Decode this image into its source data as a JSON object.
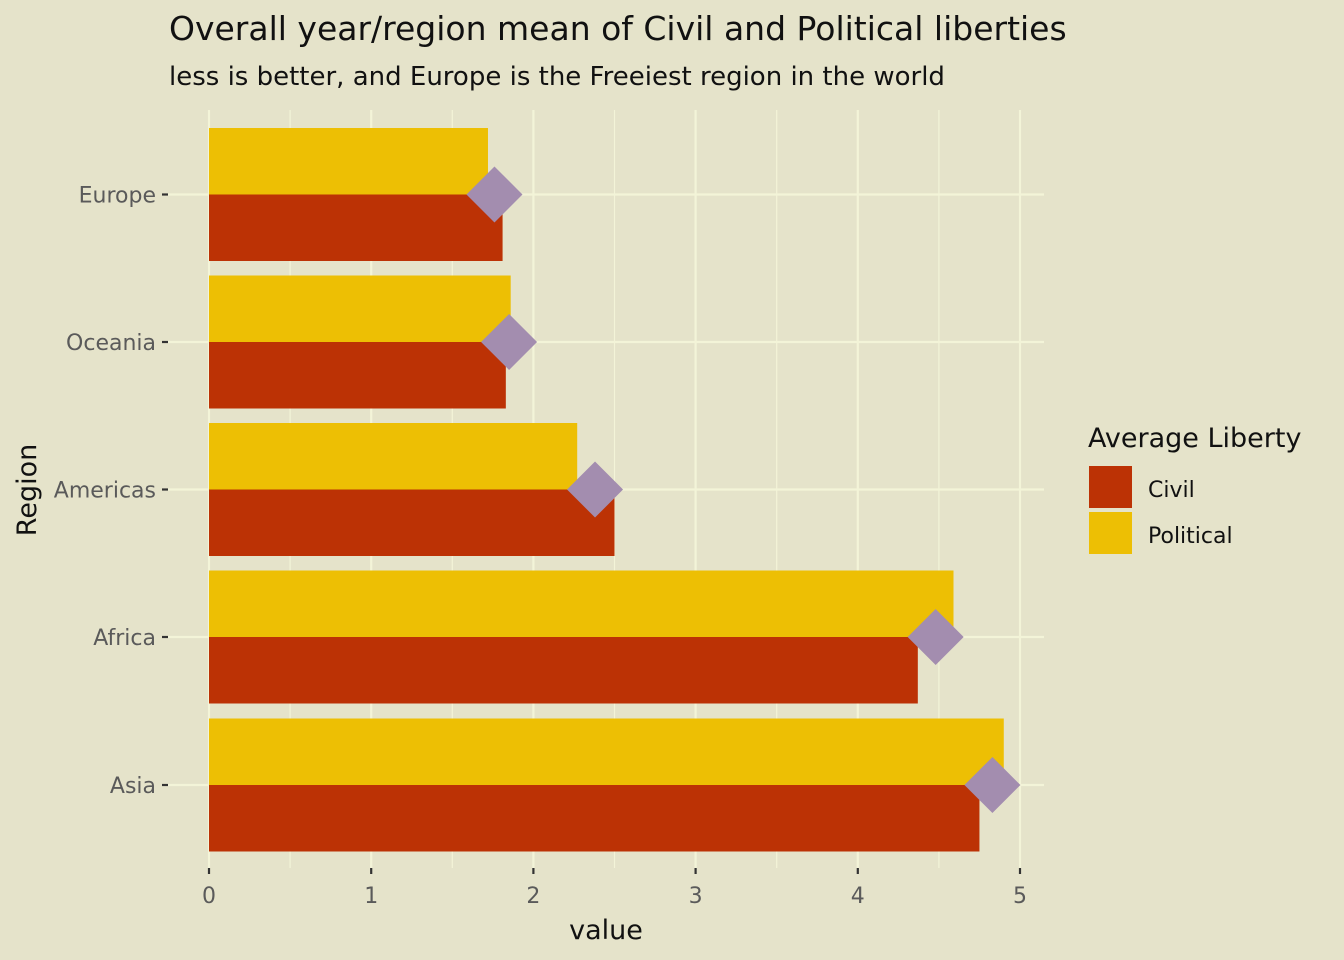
{
  "chart_data": {
    "type": "bar",
    "orientation": "horizontal",
    "title": "Overall year/region mean of Civil and Political liberties",
    "subtitle": "less is better, and Europe is the Freeiest region in the world",
    "xlabel": "value",
    "ylabel": "Region",
    "xlim": [
      0,
      5.15
    ],
    "xticks": [
      "0",
      "1",
      "2",
      "3",
      "4",
      "5"
    ],
    "categories": [
      "Europe",
      "Oceania",
      "Americas",
      "Africa",
      "Asia"
    ],
    "series": [
      {
        "name": "Civil",
        "color": "#BC3205",
        "values": [
          1.81,
          1.83,
          2.5,
          4.37,
          4.75
        ]
      },
      {
        "name": "Political",
        "color": "#EDBF04",
        "values": [
          1.72,
          1.86,
          2.27,
          4.59,
          4.9
        ]
      }
    ],
    "overall_mean": {
      "color": "#A38DAF",
      "shape": "diamond",
      "values": [
        1.76,
        1.85,
        2.38,
        4.48,
        4.83
      ]
    },
    "legend": {
      "title": "Average Liberty",
      "position": "right"
    },
    "grid": true,
    "colors": {
      "background": "#E5E3CA",
      "grid": "#F3F4D8"
    }
  }
}
